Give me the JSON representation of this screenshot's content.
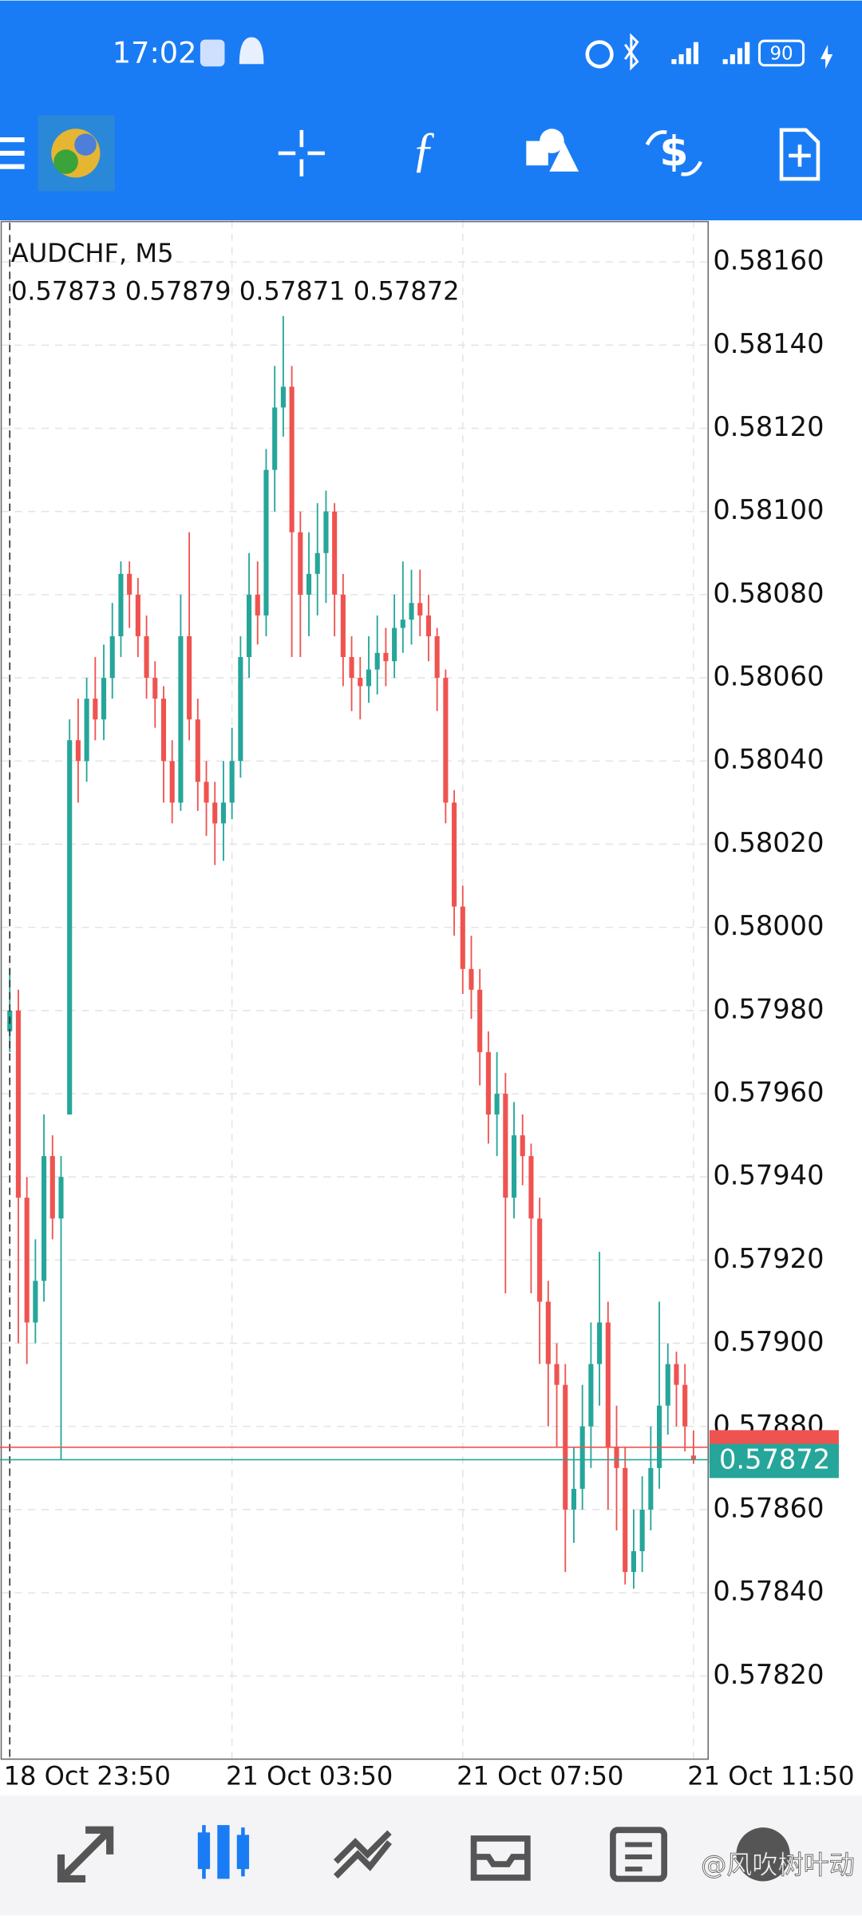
{
  "status_bar": {
    "time": "17:02",
    "battery": "90"
  },
  "chart_data": {
    "type": "candlestick",
    "symbol": "AUDCHF, M5",
    "candles": [
      [
        0.57975,
        0.5799,
        0.5797,
        0.5798
      ],
      [
        0.5798,
        0.57985,
        0.579,
        0.57935
      ],
      [
        0.57935,
        0.5794,
        0.57895,
        0.57905
      ],
      [
        0.57905,
        0.57925,
        0.579,
        0.57915
      ],
      [
        0.57915,
        0.57955,
        0.5791,
        0.57945
      ],
      [
        0.57945,
        0.5795,
        0.57925,
        0.5793
      ],
      [
        0.5793,
        0.57945,
        0.57872,
        0.5794
      ],
      [
        0.57955,
        0.5805,
        0.57955,
        0.58045
      ],
      [
        0.58045,
        0.58055,
        0.5803,
        0.5804
      ],
      [
        0.5804,
        0.5806,
        0.58035,
        0.58055
      ],
      [
        0.58055,
        0.58065,
        0.58045,
        0.5805
      ],
      [
        0.5805,
        0.58068,
        0.58045,
        0.5806
      ],
      [
        0.5806,
        0.58078,
        0.58055,
        0.5807
      ],
      [
        0.5807,
        0.58088,
        0.58065,
        0.58085
      ],
      [
        0.58085,
        0.58088,
        0.58072,
        0.5808
      ],
      [
        0.5808,
        0.58084,
        0.58065,
        0.5807
      ],
      [
        0.5807,
        0.58075,
        0.58055,
        0.5806
      ],
      [
        0.5806,
        0.58064,
        0.58048,
        0.58055
      ],
      [
        0.58055,
        0.58058,
        0.5803,
        0.5804
      ],
      [
        0.5804,
        0.58045,
        0.58025,
        0.5803
      ],
      [
        0.5803,
        0.5808,
        0.58028,
        0.5807
      ],
      [
        0.5807,
        0.58095,
        0.58045,
        0.5805
      ],
      [
        0.5805,
        0.58055,
        0.58028,
        0.58035
      ],
      [
        0.58035,
        0.5804,
        0.58022,
        0.5803
      ],
      [
        0.5803,
        0.58035,
        0.58015,
        0.58025
      ],
      [
        0.58025,
        0.5804,
        0.58016,
        0.5803
      ],
      [
        0.5803,
        0.58048,
        0.58026,
        0.5804
      ],
      [
        0.5804,
        0.5807,
        0.58036,
        0.58065
      ],
      [
        0.58065,
        0.5809,
        0.5806,
        0.5808
      ],
      [
        0.5808,
        0.58088,
        0.58068,
        0.58075
      ],
      [
        0.58075,
        0.58115,
        0.5807,
        0.5811
      ],
      [
        0.5811,
        0.58135,
        0.581,
        0.58125
      ],
      [
        0.58125,
        0.58147,
        0.58118,
        0.5813
      ],
      [
        0.5813,
        0.58135,
        0.58065,
        0.58095
      ],
      [
        0.58095,
        0.581,
        0.58065,
        0.5808
      ],
      [
        0.5808,
        0.58095,
        0.5807,
        0.58085
      ],
      [
        0.58085,
        0.58102,
        0.58075,
        0.5809
      ],
      [
        0.5809,
        0.58105,
        0.58078,
        0.581
      ],
      [
        0.581,
        0.58102,
        0.5807,
        0.5808
      ],
      [
        0.5808,
        0.58085,
        0.58058,
        0.58065
      ],
      [
        0.58065,
        0.5807,
        0.58052,
        0.5806
      ],
      [
        0.5806,
        0.58065,
        0.5805,
        0.58058
      ],
      [
        0.58058,
        0.5807,
        0.58054,
        0.58062
      ],
      [
        0.58062,
        0.58075,
        0.58056,
        0.58066
      ],
      [
        0.58066,
        0.58072,
        0.58058,
        0.58064
      ],
      [
        0.58064,
        0.5808,
        0.5806,
        0.58072
      ],
      [
        0.58072,
        0.58088,
        0.58066,
        0.58074
      ],
      [
        0.58074,
        0.58086,
        0.58068,
        0.58078
      ],
      [
        0.58078,
        0.58086,
        0.5807,
        0.58075
      ],
      [
        0.58075,
        0.5808,
        0.58064,
        0.5807
      ],
      [
        0.5807,
        0.58072,
        0.58052,
        0.5806
      ],
      [
        0.5806,
        0.58062,
        0.58025,
        0.5803
      ],
      [
        0.5803,
        0.58033,
        0.57998,
        0.58005
      ],
      [
        0.58005,
        0.5801,
        0.57984,
        0.5799
      ],
      [
        0.5799,
        0.57998,
        0.57978,
        0.57985
      ],
      [
        0.57985,
        0.5799,
        0.57962,
        0.5797
      ],
      [
        0.5797,
        0.57975,
        0.57948,
        0.57955
      ],
      [
        0.57955,
        0.5797,
        0.57945,
        0.5796
      ],
      [
        0.5796,
        0.57965,
        0.57912,
        0.57935
      ],
      [
        0.57935,
        0.57958,
        0.5793,
        0.5795
      ],
      [
        0.5795,
        0.57955,
        0.57938,
        0.57945
      ],
      [
        0.57945,
        0.57948,
        0.57912,
        0.5793
      ],
      [
        0.5793,
        0.57935,
        0.57895,
        0.5791
      ],
      [
        0.5791,
        0.57915,
        0.5788,
        0.57895
      ],
      [
        0.57895,
        0.579,
        0.57875,
        0.5789
      ],
      [
        0.5789,
        0.57895,
        0.57845,
        0.5786
      ],
      [
        0.5786,
        0.57875,
        0.57852,
        0.57865
      ],
      [
        0.57865,
        0.5789,
        0.5786,
        0.5788
      ],
      [
        0.5788,
        0.57905,
        0.5787,
        0.57895
      ],
      [
        0.57895,
        0.57922,
        0.57885,
        0.57905
      ],
      [
        0.57905,
        0.5791,
        0.5786,
        0.57875
      ],
      [
        0.57875,
        0.57885,
        0.57855,
        0.5787
      ],
      [
        0.5787,
        0.57875,
        0.57842,
        0.57845
      ],
      [
        0.57845,
        0.5786,
        0.57841,
        0.5785
      ],
      [
        0.5785,
        0.57868,
        0.57845,
        0.5786
      ],
      [
        0.5786,
        0.5788,
        0.57855,
        0.5787
      ],
      [
        0.5787,
        0.5791,
        0.57865,
        0.57885
      ],
      [
        0.57885,
        0.579,
        0.57878,
        0.57895
      ],
      [
        0.57895,
        0.57898,
        0.5788,
        0.5789
      ],
      [
        0.5789,
        0.57895,
        0.57874,
        0.5788
      ],
      [
        0.57873,
        0.57879,
        0.57871,
        0.57872
      ]
    ],
    "categories": [
      "18 Oct 23:50",
      null,
      null,
      null,
      null,
      null,
      null,
      null,
      null,
      null,
      null,
      null,
      null,
      null,
      null,
      null,
      null,
      null,
      null,
      null,
      null,
      null,
      null,
      null,
      null,
      null,
      "21 Oct 03:50",
      null,
      null,
      null,
      null,
      null,
      null,
      null,
      null,
      null,
      null,
      null,
      null,
      null,
      null,
      null,
      null,
      null,
      null,
      null,
      null,
      null,
      null,
      null,
      null,
      null,
      null,
      "21 Oct 07:50",
      null,
      null,
      null,
      null,
      null,
      null,
      null,
      null,
      null,
      null,
      null,
      null,
      null,
      null,
      null,
      null,
      null,
      null,
      null,
      null,
      null,
      null,
      null,
      null,
      null,
      null,
      "21 Oct 11:50"
    ],
    "ylim": [
      0.578,
      0.5817
    ],
    "yticks": [
      {
        "value": 0.5782,
        "label": "0.57820"
      },
      {
        "value": 0.5784,
        "label": "0.57840"
      },
      {
        "value": 0.5786,
        "label": "0.57860"
      },
      {
        "value": 0.5788,
        "label": "0.57880"
      },
      {
        "value": 0.579,
        "label": "0.57900"
      },
      {
        "value": 0.5792,
        "label": "0.57920"
      },
      {
        "value": 0.5794,
        "label": "0.57940"
      },
      {
        "value": 0.5796,
        "label": "0.57960"
      },
      {
        "value": 0.5798,
        "label": "0.57980"
      },
      {
        "value": 0.58,
        "label": "0.58000"
      },
      {
        "value": 0.5802,
        "label": "0.58020"
      },
      {
        "value": 0.5804,
        "label": "0.58040"
      },
      {
        "value": 0.5806,
        "label": "0.58060"
      },
      {
        "value": 0.5808,
        "label": "0.58080"
      },
      {
        "value": 0.581,
        "label": "0.58100"
      },
      {
        "value": 0.5812,
        "label": "0.58120"
      },
      {
        "value": 0.5814,
        "label": "0.58140"
      },
      {
        "value": 0.5816,
        "label": "0.58160"
      }
    ],
    "bid": 0.57872,
    "ask": 0.57875,
    "up_color": "#26a69a",
    "down_color": "#ef5350",
    "bid_color": "#26a69a",
    "ask_color": "#ef5350",
    "grid": true
  },
  "watermark": "@风吹树叶动"
}
